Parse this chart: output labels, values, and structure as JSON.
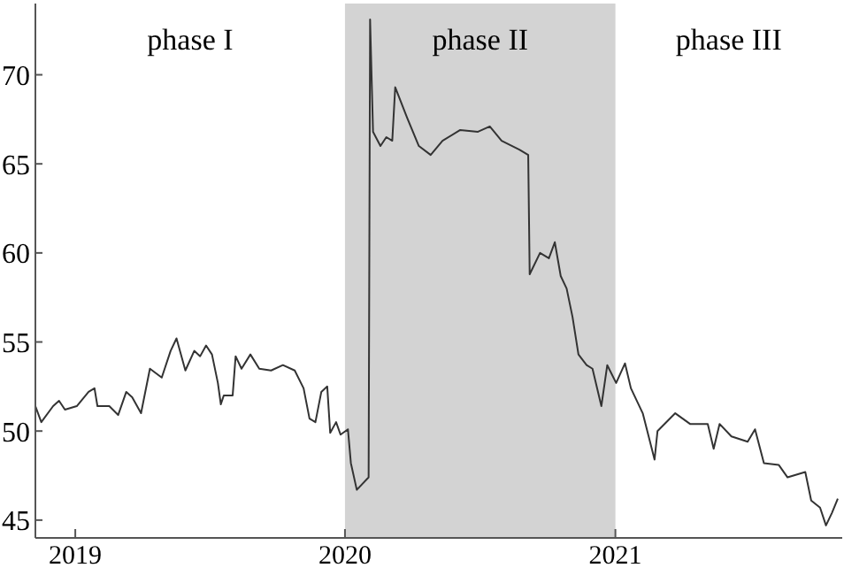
{
  "chart_data": {
    "type": "line",
    "x": [
      "2018-11-08",
      "2018-11-16",
      "2018-12-02",
      "2018-12-10",
      "2018-12-18",
      "2019-01-03",
      "2019-01-19",
      "2019-01-27",
      "2019-01-31",
      "2019-02-16",
      "2019-02-28",
      "2019-03-11",
      "2019-03-19",
      "2019-03-31",
      "2019-04-12",
      "2019-04-28",
      "2019-05-10",
      "2019-05-18",
      "2019-05-30",
      "2019-06-11",
      "2019-06-19",
      "2019-06-27",
      "2019-07-05",
      "2019-07-13",
      "2019-07-17",
      "2019-07-21",
      "2019-08-02",
      "2019-08-06",
      "2019-08-14",
      "2019-08-26",
      "2019-09-07",
      "2019-09-23",
      "2019-10-09",
      "2019-10-25",
      "2019-11-06",
      "2019-11-14",
      "2019-11-22",
      "2019-11-30",
      "2019-12-08",
      "2019-12-12",
      "2019-12-20",
      "2019-12-26",
      "2020-01-05",
      "2020-01-09",
      "2020-01-17",
      "2020-02-02",
      "2020-02-04",
      "2020-02-08",
      "2020-02-18",
      "2020-02-26",
      "2020-03-05",
      "2020-03-09",
      "2020-03-25",
      "2020-04-10",
      "2020-04-26",
      "2020-05-12",
      "2020-06-05",
      "2020-06-29",
      "2020-07-15",
      "2020-07-31",
      "2020-08-24",
      "2020-09-05",
      "2020-09-07",
      "2020-09-21",
      "2020-10-03",
      "2020-10-11",
      "2020-10-19",
      "2020-10-27",
      "2020-11-04",
      "2020-11-12",
      "2020-11-23",
      "2020-12-01",
      "2020-12-13",
      "2020-12-21",
      "2021-01-02",
      "2021-01-14",
      "2021-01-22",
      "2021-02-07",
      "2021-02-23",
      "2021-02-27",
      "2021-03-23",
      "2021-04-12",
      "2021-05-06",
      "2021-05-14",
      "2021-05-22",
      "2021-06-07",
      "2021-06-29",
      "2021-07-09",
      "2021-07-21",
      "2021-08-10",
      "2021-08-22",
      "2021-09-15",
      "2021-09-23",
      "2021-10-05",
      "2021-10-13",
      "2021-10-21",
      "2021-10-29"
    ],
    "series": [
      {
        "color": "#333333",
        "values": [
          51.4,
          50.5,
          51.4,
          51.7,
          51.2,
          51.4,
          52.2,
          52.4,
          51.4,
          51.4,
          50.9,
          52.2,
          51.9,
          51.0,
          53.5,
          53.0,
          54.5,
          55.2,
          53.4,
          54.5,
          54.2,
          54.8,
          54.3,
          52.7,
          51.5,
          52.0,
          52.0,
          54.2,
          53.5,
          54.3,
          53.5,
          53.4,
          53.7,
          53.4,
          52.4,
          50.7,
          50.5,
          52.2,
          52.5,
          49.9,
          50.5,
          49.8,
          50.1,
          48.2,
          46.7,
          47.4,
          73.1,
          66.8,
          66.0,
          66.5,
          66.3,
          69.3,
          67.6,
          66.0,
          65.5,
          66.3,
          66.9,
          66.8,
          67.1,
          66.3,
          65.8,
          65.5,
          58.8,
          60.0,
          59.7,
          60.6,
          58.7,
          58.0,
          56.4,
          54.3,
          53.7,
          53.5,
          51.4,
          53.7,
          52.7,
          53.8,
          52.4,
          51.0,
          48.4,
          50.0,
          51.0,
          50.4,
          50.4,
          49.0,
          50.4,
          49.7,
          49.4,
          50.1,
          48.2,
          48.1,
          47.4,
          47.7,
          46.1,
          45.7,
          44.7,
          45.4,
          46.2
        ]
      }
    ],
    "xlim": [
      "2018-11-08",
      "2021-11-04"
    ],
    "xticks": [
      "2019",
      "2020",
      "2021"
    ],
    "ylim": [
      44,
      74
    ],
    "yticks": [
      45,
      50,
      55,
      60,
      65,
      70
    ],
    "bands": [
      {
        "axis": "x",
        "from": "2020-01-01",
        "to": "2021-01-01",
        "label": "phase II",
        "color": "#d3d3d3"
      }
    ],
    "annotations": [
      "phase I",
      "phase III"
    ],
    "grid": false,
    "legend": false,
    "marker": "none",
    "line_style": "solid"
  }
}
